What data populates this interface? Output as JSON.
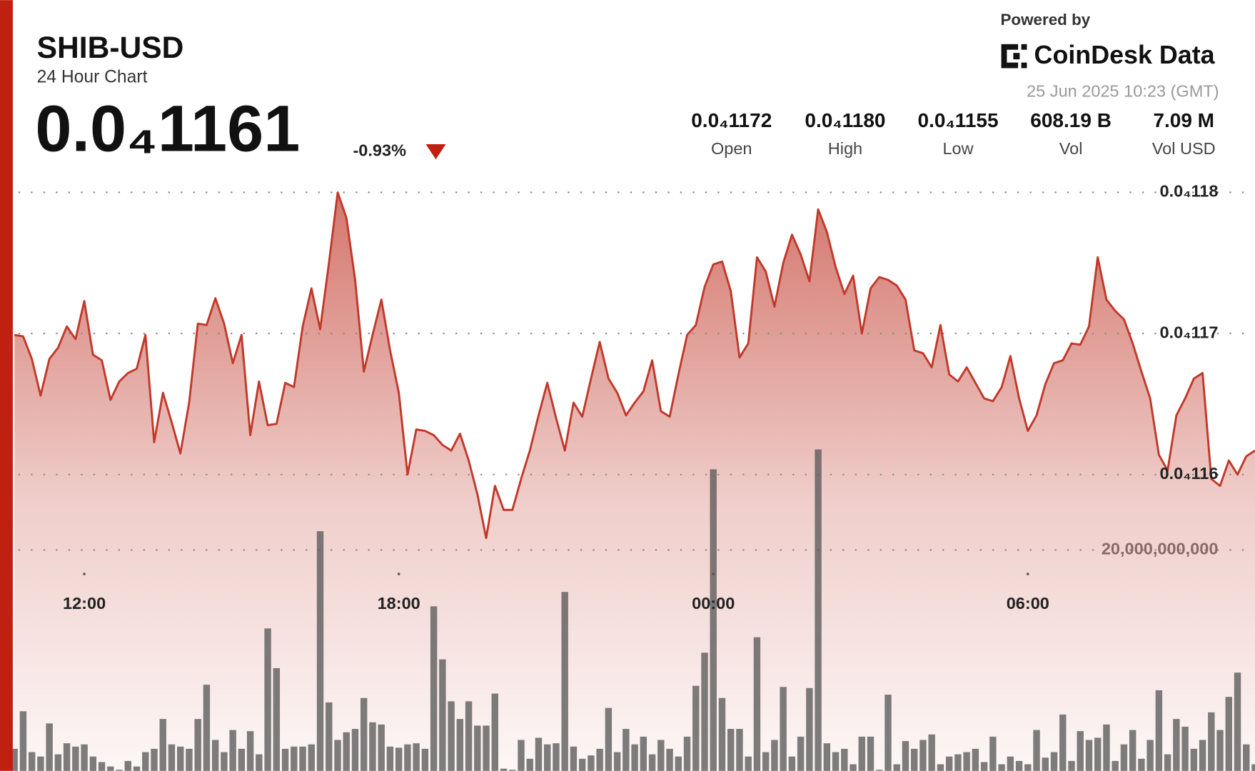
{
  "header": {
    "title": "SHIB-USD",
    "subtitle": "24 Hour Chart",
    "price": "0.0₄1161",
    "change": "-0.93%",
    "powered_by": "Powered by",
    "brand": "CoinDesk Data",
    "timestamp": "25 Jun 2025 10:23 (GMT)"
  },
  "stats": [
    {
      "value": "0.0₄1172",
      "label": "Open"
    },
    {
      "value": "0.0₄1180",
      "label": "High"
    },
    {
      "value": "0.0₄1155",
      "label": "Low"
    },
    {
      "value": "608.19 B",
      "label": "Vol"
    },
    {
      "value": "7.09 M",
      "label": "Vol USD"
    }
  ],
  "chart_data": {
    "type": "line",
    "grid": true,
    "categories": [
      null,
      null,
      null,
      null,
      null,
      null,
      null,
      null,
      "12:00",
      null,
      null,
      null,
      null,
      null,
      null,
      null,
      null,
      null,
      null,
      null,
      null,
      null,
      null,
      null,
      null,
      null,
      null,
      null,
      null,
      null,
      null,
      null,
      null,
      null,
      null,
      null,
      null,
      null,
      null,
      null,
      null,
      null,
      null,
      null,
      "18:00",
      null,
      null,
      null,
      null,
      null,
      null,
      null,
      null,
      null,
      null,
      null,
      null,
      null,
      null,
      null,
      null,
      null,
      null,
      null,
      null,
      null,
      null,
      null,
      null,
      null,
      null,
      null,
      null,
      null,
      null,
      null,
      null,
      null,
      null,
      null,
      "00:00",
      null,
      null,
      null,
      null,
      null,
      null,
      null,
      null,
      null,
      null,
      null,
      null,
      null,
      null,
      null,
      null,
      null,
      null,
      null,
      null,
      null,
      null,
      null,
      null,
      null,
      null,
      null,
      null,
      null,
      null,
      null,
      null,
      null,
      null,
      null,
      "06:00",
      null,
      null,
      null,
      null,
      null,
      null,
      null,
      null,
      null,
      null,
      null,
      null,
      null,
      null,
      null,
      null,
      null,
      null,
      null,
      null,
      null,
      null,
      null,
      null,
      null,
      null
    ],
    "ylim": [
      1.139e-05,
      1.182e-05
    ],
    "yticks": [
      {
        "value": 1.16e-05,
        "label": "0.0₄116"
      },
      {
        "value": 1.17e-05,
        "label": "0.0₄117"
      },
      {
        "value": 1.18e-05,
        "label": "0.0₄118"
      }
    ],
    "y2lim": [
      0,
      40000000000.0
    ],
    "y2ticks": [
      {
        "value": 20000000000.0,
        "label": "20,000,000,000"
      }
    ],
    "series": [
      {
        "type": "line",
        "color": "#c0392b",
        "values": [
          1.1699e-05,
          1.1698e-05,
          1.1682e-05,
          1.1656e-05,
          1.1682e-05,
          1.169e-05,
          1.1705e-05,
          1.1696e-05,
          1.1723e-05,
          1.1685e-05,
          1.1681e-05,
          1.1653e-05,
          1.1666e-05,
          1.1672e-05,
          1.1675e-05,
          1.1699e-05,
          1.1623e-05,
          1.1658e-05,
          1.1637e-05,
          1.1615e-05,
          1.1651e-05,
          1.1707e-05,
          1.1706e-05,
          1.1725e-05,
          1.1707e-05,
          1.1679e-05,
          1.1699e-05,
          1.1628e-05,
          1.1666e-05,
          1.1635e-05,
          1.1636e-05,
          1.1665e-05,
          1.1662e-05,
          1.1705e-05,
          1.1732e-05,
          1.1703e-05,
          1.175e-05,
          1.18e-05,
          1.1782e-05,
          1.1738e-05,
          1.1673e-05,
          1.1699e-05,
          1.1724e-05,
          1.1688e-05,
          1.1658e-05,
          1.16e-05,
          1.1632e-05,
          1.1631e-05,
          1.1628e-05,
          1.1621e-05,
          1.1617e-05,
          1.1629e-05,
          1.161e-05,
          1.1586e-05,
          1.1555e-05,
          1.1592e-05,
          1.1575e-05,
          1.1575e-05,
          1.1597e-05,
          1.1617e-05,
          1.1642e-05,
          1.1665e-05,
          1.164e-05,
          1.1617e-05,
          1.1651e-05,
          1.1641e-05,
          1.1668e-05,
          1.1694e-05,
          1.1668e-05,
          1.1658e-05,
          1.1642e-05,
          1.1651e-05,
          1.1659e-05,
          1.1681e-05,
          1.1645e-05,
          1.1641e-05,
          1.1671e-05,
          1.1699e-05,
          1.1706e-05,
          1.1733e-05,
          1.1749e-05,
          1.1751e-05,
          1.173e-05,
          1.1683e-05,
          1.1693e-05,
          1.1754e-05,
          1.1744e-05,
          1.1719e-05,
          1.175e-05,
          1.177e-05,
          1.1756e-05,
          1.1737e-05,
          1.1788e-05,
          1.1772e-05,
          1.1747e-05,
          1.1728e-05,
          1.1741e-05,
          1.17e-05,
          1.1732e-05,
          1.174e-05,
          1.1738e-05,
          1.1734e-05,
          1.1724e-05,
          1.1688e-05,
          1.1686e-05,
          1.1676e-05,
          1.1706e-05,
          1.1671e-05,
          1.1666e-05,
          1.1676e-05,
          1.1665e-05,
          1.1654e-05,
          1.1652e-05,
          1.1662e-05,
          1.1684e-05,
          1.1654e-05,
          1.1631e-05,
          1.1642e-05,
          1.1664e-05,
          1.1679e-05,
          1.1681e-05,
          1.1693e-05,
          1.1692e-05,
          1.1705e-05,
          1.1754e-05,
          1.1724e-05,
          1.1716e-05,
          1.171e-05,
          1.1693e-05,
          1.1673e-05,
          1.1654e-05,
          1.1614e-05,
          1.1603e-05,
          1.1642e-05,
          1.1654e-05,
          1.1668e-05,
          1.1672e-05,
          1.1597e-05,
          1.1592e-05,
          1.161e-05,
          1.16e-05,
          1.1613e-05,
          1.1617e-05
        ]
      },
      {
        "type": "bar",
        "axis": "y2",
        "color": "#5a5a5a",
        "values": [
          2000000000.0,
          5400000000.0,
          1700000000.0,
          1300000000.0,
          4300000000.0,
          1500000000.0,
          2500000000.0,
          2200000000.0,
          2400000000.0,
          1300000000.0,
          800000000.0,
          400000000.0,
          100000000.0,
          900000000.0,
          400000000.0,
          1700000000.0,
          2000000000.0,
          4700000000.0,
          2400000000.0,
          2200000000.0,
          2000000000.0,
          4700000000.0,
          7800000000.0,
          2800000000.0,
          1700000000.0,
          3700000000.0,
          2000000000.0,
          3600000000.0,
          1500000000.0,
          12900000000.0,
          9300000000.0,
          2000000000.0,
          2200000000.0,
          2200000000.0,
          2400000000.0,
          21700000000.0,
          6200000000.0,
          2800000000.0,
          3500000000.0,
          3800000000.0,
          6600000000.0,
          4400000000.0,
          4200000000.0,
          2200000000.0,
          2100000000.0,
          2400000000.0,
          2500000000.0,
          2000000000.0,
          14900000000.0,
          10100000000.0,
          6300000000.0,
          4700000000.0,
          6300000000.0,
          4100000000.0,
          4100000000.0,
          7000000000.0,
          200000000.0,
          100000000.0,
          2800000000.0,
          1100000000.0,
          3000000000.0,
          2400000000.0,
          2500000000.0,
          16200000000.0,
          2200000000.0,
          1100000000.0,
          1400000000.0,
          2000000000.0,
          5700000000.0,
          1700000000.0,
          3800000000.0,
          2400000000.0,
          3100000000.0,
          1500000000.0,
          2800000000.0,
          2000000000.0,
          1300000000.0,
          3100000000.0,
          7700000000.0,
          10700000000.0,
          27300000000.0,
          6600000000.0,
          3800000000.0,
          3800000000.0,
          1300000000.0,
          12100000000.0,
          1700000000.0,
          2800000000.0,
          7600000000.0,
          1300000000.0,
          3100000000.0,
          7500000000.0,
          29100000000.0,
          2500000000.0,
          1700000000.0,
          2000000000.0,
          600000000.0,
          3100000000.0,
          3100000000.0,
          100000000.0,
          6900000000.0,
          600000000.0,
          2700000000.0,
          2000000000.0,
          2800000000.0,
          3300000000.0,
          600000000.0,
          1300000000.0,
          1500000000.0,
          1700000000.0,
          2000000000.0,
          800000000.0,
          3100000000.0,
          600000000.0,
          1300000000.0,
          900000000.0,
          600000000.0,
          3700000000.0,
          1200000000.0,
          1700000000.0,
          5100000000.0,
          900000000.0,
          3600000000.0,
          2800000000.0,
          3000000000.0,
          4200000000.0,
          900000000.0,
          2400000000.0,
          3700000000.0,
          1100000000.0,
          2800000000.0,
          7300000000.0,
          1500000000.0,
          4700000000.0,
          4000000000.0,
          2000000000.0,
          2800000000.0,
          5300000000.0,
          3700000000.0,
          6700000000.0,
          8900000000.0,
          2400000000.0,
          600000000.0
        ]
      }
    ]
  }
}
